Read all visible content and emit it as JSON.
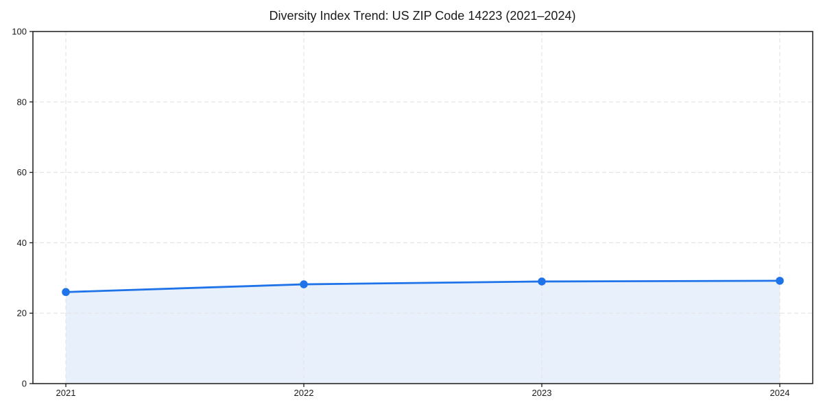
{
  "chart_data": {
    "type": "line",
    "title": "Diversity Index Trend: US ZIP Code 14223 (2021–2024)",
    "categories": [
      "2021",
      "2022",
      "2023",
      "2024"
    ],
    "series": [
      {
        "name": "Diversity Index",
        "values": [
          26.0,
          28.2,
          29.0,
          29.2
        ]
      }
    ],
    "xlabel": "",
    "ylabel": "",
    "ylim": [
      0,
      100
    ],
    "yticks": [
      0,
      20,
      40,
      60,
      80,
      100
    ],
    "grid": "dashed",
    "legend_position": "none",
    "marker": "circle",
    "area_fill": true,
    "colors": {
      "line": "#1f73e8",
      "marker": "#1f73e8",
      "area_fill": "#e8f0fc",
      "gridline": "#e4e4e4",
      "axis": "#1a1a1a",
      "tick_text": "#1a1a1a",
      "background": "#ffffff"
    }
  }
}
